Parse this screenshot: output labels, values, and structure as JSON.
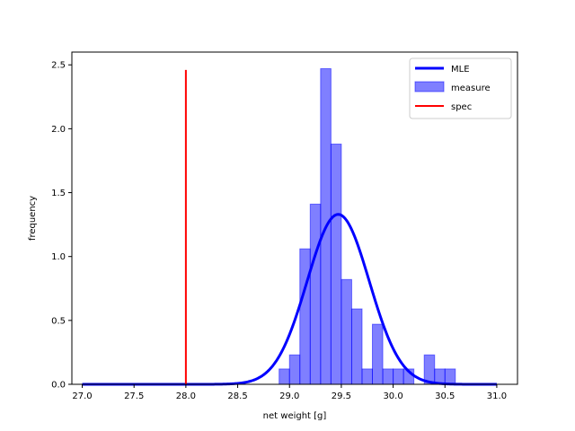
{
  "chart_data": {
    "type": "histogram+line",
    "xlabel": "net weight [g]",
    "ylabel": "frequency",
    "xlim": [
      26.9,
      31.2
    ],
    "ylim": [
      0,
      2.6
    ],
    "x_ticks": [
      27.0,
      27.5,
      28.0,
      28.5,
      29.0,
      29.5,
      30.0,
      30.5,
      31.0
    ],
    "x_tick_labels": [
      "27.0",
      "27.5",
      "28.0",
      "28.5",
      "29.0",
      "29.5",
      "30.0",
      "30.5",
      "31.0"
    ],
    "y_ticks": [
      0.0,
      0.5,
      1.0,
      1.5,
      2.0,
      2.5
    ],
    "y_tick_labels": [
      "0.0",
      "0.5",
      "1.0",
      "1.5",
      "2.0",
      "2.5"
    ],
    "grid": false,
    "legend_position": "top-right",
    "histogram": {
      "name": "measure",
      "color": "#0000ff",
      "bin_edges": [
        28.9,
        29.0,
        29.1,
        29.2,
        29.3,
        29.4,
        29.5,
        29.6,
        29.7,
        29.8,
        29.9,
        30.0,
        30.1,
        30.2,
        30.3,
        30.4,
        30.5,
        30.6
      ],
      "values": [
        0.12,
        0.23,
        1.06,
        1.41,
        2.47,
        1.88,
        0.82,
        0.59,
        0.12,
        0.47,
        0.12,
        0.12,
        0.12,
        0.0,
        0.23,
        0.12,
        0.12
      ]
    },
    "mle": {
      "name": "MLE",
      "color": "#0000ff",
      "distribution": "normal",
      "mean": 29.47,
      "std": 0.3,
      "x_range": [
        27.0,
        31.0
      ]
    },
    "spec": {
      "name": "spec",
      "color": "#ff0000",
      "x": 28.0,
      "y_range": [
        0.0,
        2.46
      ]
    }
  }
}
